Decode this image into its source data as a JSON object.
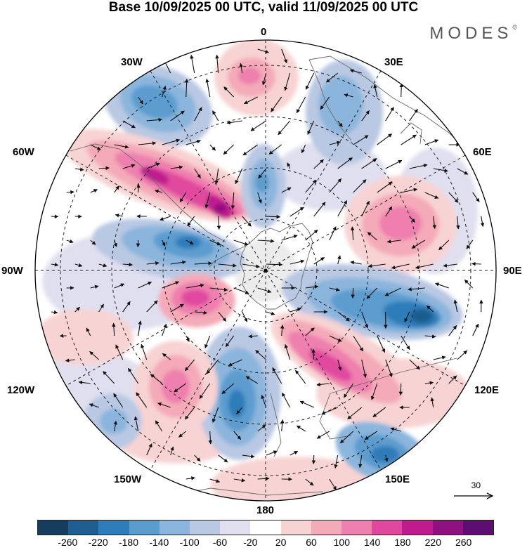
{
  "title": "Base 10/09/2025 00 UTC, valid 11/09/2025 00 UTC",
  "brand": "MODES",
  "brand_mark": "©",
  "reference_vector": "30",
  "longitude_labels": {
    "top": "0",
    "bottom": "180",
    "left": "90W",
    "right": "90E",
    "upper_left_1": "30W",
    "upper_left_2": "60W",
    "upper_right_1": "30E",
    "upper_right_2": "60E",
    "lower_left_1": "120W",
    "lower_left_2": "150W",
    "lower_right_1": "120E",
    "lower_right_2": "150E"
  },
  "colorbar": {
    "colors": [
      "#163c5e",
      "#1d5d8f",
      "#2f7cba",
      "#5b9ccf",
      "#8bb5dc",
      "#b9c8e3",
      "#dfdfef",
      "#ffffff",
      "#f8d3d3",
      "#f4aab8",
      "#ee7fae",
      "#e0489e",
      "#bf1b8d",
      "#8f1080",
      "#5e0d73"
    ],
    "ticks": [
      "-260",
      "-220",
      "-180",
      "-140",
      "-100",
      "-60",
      "-20",
      "20",
      "60",
      "100",
      "140",
      "180",
      "220",
      "260"
    ]
  }
}
